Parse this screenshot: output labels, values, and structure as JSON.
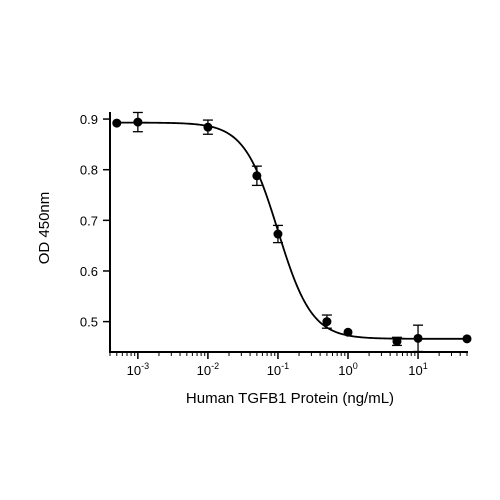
{
  "chart_data": {
    "type": "scatter",
    "title": "",
    "xlabel": "Human TGFB1 Protein (ng/mL)",
    "ylabel": "OD 450nm",
    "xscale": "log",
    "xlim": [
      0.0004,
      50
    ],
    "ylim": [
      0.44,
      0.91
    ],
    "x_ticks": [
      0.001,
      0.01,
      0.1,
      1,
      10
    ],
    "x_tick_labels": [
      {
        "base": "10",
        "exp": "-3"
      },
      {
        "base": "10",
        "exp": "-2"
      },
      {
        "base": "10",
        "exp": "-1"
      },
      {
        "base": "10",
        "exp": "0"
      },
      {
        "base": "10",
        "exp": "1"
      }
    ],
    "y_ticks": [
      0.5,
      0.6,
      0.7,
      0.8,
      0.9
    ],
    "y_tick_labels": [
      "0.5",
      "0.6",
      "0.7",
      "0.8",
      "0.9"
    ],
    "grid": false,
    "legend": "none",
    "marker_color": "#000000",
    "series": [
      {
        "x": [
          0.0005,
          0.001,
          0.01,
          0.05,
          0.1,
          0.5,
          1,
          5,
          10,
          50
        ],
        "y": [
          0.892,
          0.894,
          0.884,
          0.788,
          0.673,
          0.5,
          0.479,
          0.461,
          0.467,
          0.466
        ],
        "error": [
          0,
          0.019,
          0.014,
          0.019,
          0.017,
          0.013,
          0,
          0.008,
          0.026,
          0
        ]
      }
    ],
    "fit_curve": {
      "type": "4PL",
      "top": 0.893,
      "bottom": 0.466,
      "ec50": 0.1,
      "hill": 1.8
    }
  }
}
